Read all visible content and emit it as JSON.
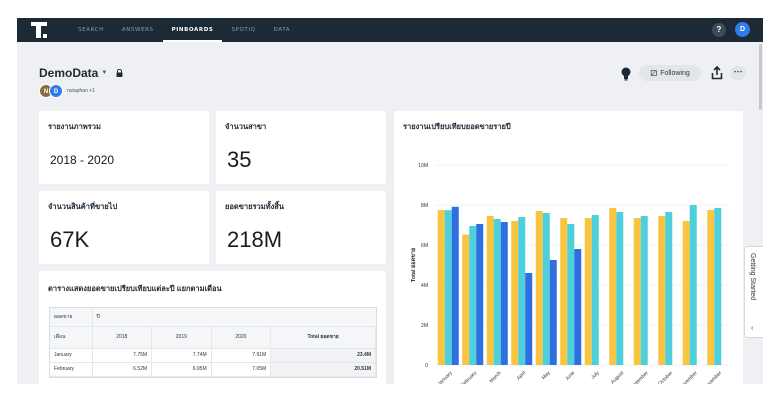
{
  "nav": {
    "tabs": [
      "SEARCH",
      "ANSWERS",
      "PINBOARDS",
      "SPOTIQ",
      "DATA"
    ],
    "active": "PINBOARDS",
    "help_label": "?",
    "user_initial": "D"
  },
  "pinboard": {
    "title": "DemoData",
    "author_initials": [
      "N",
      "D"
    ],
    "authors_text": "nutaphan +1",
    "following_label": "Following"
  },
  "tiles": {
    "range_title": "รายงานภาพรวม",
    "range_value": "2018 - 2020",
    "branches_title": "จำนวนสาขา",
    "branches_value": "35",
    "products_title": "จำนวนสินค้าที่ขายไป",
    "products_value": "67K",
    "sales_title": "ยอดขายรวมทั้งสิ้น",
    "sales_value": "218M",
    "table_title": "ตารางแสดงยอดขายเปรียบเทียบแต่ละปี แยกตามเดือน",
    "chart_title": "รายงานเปรียบเทียบยอดขายรายปี"
  },
  "table": {
    "row_label_a": "ยอดขาย",
    "row_label_b": "ปี",
    "month_header": "เดือน",
    "years": [
      "2018",
      "2019",
      "2020"
    ],
    "total_header": "Total ยอดขาย",
    "rows": [
      {
        "month": "January",
        "v2018": "7.75M",
        "v2019": "7.74M",
        "v2020": "7.91M",
        "total": "23.4M"
      },
      {
        "month": "February",
        "v2018": "6.52M",
        "v2019": "6.95M",
        "v2020": "7.05M",
        "total": "20.51M"
      }
    ]
  },
  "chart_data": {
    "type": "bar",
    "title": "รายงานเปรียบเทียบยอดขายรายปี",
    "ylabel": "Total ยอดขาย",
    "xlabel": "",
    "ylim": [
      0,
      10000000
    ],
    "yticks": [
      "0",
      "2M",
      "4M",
      "6M",
      "8M",
      "10M"
    ],
    "ytick_values": [
      0,
      2000000,
      4000000,
      6000000,
      8000000,
      10000000
    ],
    "categories": [
      "January",
      "February",
      "March",
      "April",
      "May",
      "June",
      "July",
      "August",
      "September",
      "October",
      "November",
      "December"
    ],
    "colors": [
      "#f9c440",
      "#4ed0dc",
      "#2f6fe0"
    ],
    "series": [
      {
        "values": [
          7750000,
          6520000,
          7450000,
          7200000,
          7700000,
          7350000,
          7350000,
          7850000,
          7350000,
          7450000,
          7200000,
          7750000
        ]
      },
      {
        "values": [
          7740000,
          6950000,
          7300000,
          7400000,
          7600000,
          7050000,
          7500000,
          7650000,
          7450000,
          7650000,
          8000000,
          7850000
        ]
      },
      {
        "values": [
          7910000,
          7050000,
          7150000,
          4600000,
          5250000,
          5800000,
          null,
          null,
          null,
          null,
          null,
          null
        ]
      }
    ]
  },
  "side_tab": {
    "label": "Getting Started",
    "chevron": "‹"
  }
}
